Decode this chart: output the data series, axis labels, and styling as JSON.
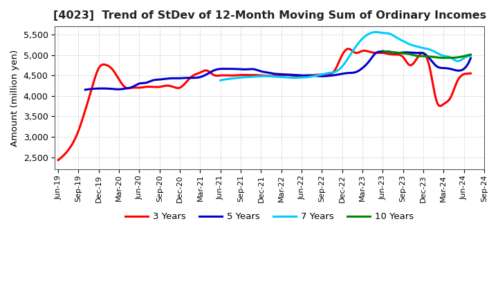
{
  "title": "[4023]  Trend of StDev of 12-Month Moving Sum of Ordinary Incomes",
  "ylabel": "Amount (million yen)",
  "ylim": [
    2200,
    5700
  ],
  "yticks": [
    2500,
    3000,
    3500,
    4000,
    4500,
    5000,
    5500
  ],
  "background_color": "#ffffff",
  "grid_color": "#b0b0b0",
  "series": {
    "3 Years": {
      "color": "#ff0000",
      "x": [
        0,
        1,
        2,
        3,
        4,
        5,
        6,
        7,
        8,
        9,
        10,
        11,
        12,
        13,
        14,
        15,
        16,
        17,
        18,
        19,
        20,
        21,
        22,
        23,
        24,
        25,
        26,
        27,
        28,
        29,
        30,
        31,
        32,
        33,
        34,
        35,
        36,
        37,
        38,
        39,
        40,
        41,
        42,
        43,
        44,
        45,
        46,
        47,
        48,
        49,
        50,
        51,
        52,
        53,
        54,
        55,
        56,
        57,
        58,
        59,
        60,
        61
      ],
      "y": [
        2430,
        2580,
        2800,
        3150,
        3650,
        4200,
        4680,
        4760,
        4650,
        4400,
        4200,
        4200,
        4200,
        4220,
        4220,
        4220,
        4250,
        4220,
        4200,
        4350,
        4500,
        4570,
        4620,
        4510,
        4500,
        4500,
        4500,
        4510,
        4510,
        4510,
        4500,
        4490,
        4490,
        4500,
        4510,
        4490,
        4490,
        4500,
        4510,
        4520,
        4510,
        4650,
        5000,
        5150,
        5050,
        5100,
        5080,
        5050,
        5050,
        5020,
        5010,
        4950,
        4750,
        4900,
        5050,
        4650,
        3850,
        3800,
        3950,
        4350,
        4530,
        4550
      ]
    },
    "5 Years": {
      "color": "#0000cc",
      "x": [
        4,
        5,
        6,
        7,
        8,
        9,
        10,
        11,
        12,
        13,
        14,
        15,
        16,
        17,
        18,
        19,
        20,
        21,
        22,
        23,
        24,
        25,
        26,
        27,
        28,
        29,
        30,
        31,
        32,
        33,
        34,
        35,
        36,
        37,
        38,
        39,
        40,
        41,
        42,
        43,
        44,
        45,
        46,
        47,
        48,
        49,
        50,
        51,
        52,
        53,
        54,
        55,
        56,
        57,
        58,
        59,
        60,
        61
      ],
      "y": [
        4150,
        4170,
        4180,
        4180,
        4170,
        4160,
        4180,
        4220,
        4300,
        4320,
        4380,
        4400,
        4420,
        4430,
        4430,
        4440,
        4440,
        4460,
        4530,
        4620,
        4660,
        4660,
        4660,
        4650,
        4650,
        4650,
        4600,
        4570,
        4540,
        4530,
        4520,
        4510,
        4500,
        4500,
        4490,
        4480,
        4490,
        4510,
        4540,
        4560,
        4580,
        4680,
        4850,
        5050,
        5080,
        5080,
        5050,
        5060,
        5060,
        5050,
        5040,
        4900,
        4720,
        4680,
        4660,
        4620,
        4660,
        4920
      ]
    },
    "7 Years": {
      "color": "#00ccff",
      "x": [
        24,
        25,
        26,
        27,
        28,
        29,
        30,
        31,
        32,
        33,
        34,
        35,
        36,
        37,
        38,
        39,
        40,
        41,
        42,
        43,
        44,
        45,
        46,
        47,
        48,
        49,
        50,
        51,
        52,
        53,
        54,
        55,
        56,
        57,
        58,
        59,
        60,
        61
      ],
      "y": [
        4380,
        4410,
        4430,
        4450,
        4460,
        4470,
        4480,
        4480,
        4470,
        4460,
        4450,
        4440,
        4450,
        4460,
        4490,
        4520,
        4560,
        4590,
        4720,
        4950,
        5200,
        5400,
        5520,
        5560,
        5540,
        5520,
        5430,
        5340,
        5260,
        5210,
        5170,
        5130,
        5050,
        4980,
        4940,
        4850,
        4920,
        4970
      ]
    },
    "10 Years": {
      "color": "#008800",
      "x": [
        48,
        49,
        50,
        51,
        52,
        53,
        54,
        55,
        56,
        57,
        58,
        59,
        60,
        61
      ],
      "y": [
        5100,
        5070,
        5060,
        5040,
        5020,
        4980,
        4970,
        4960,
        4940,
        4930,
        4930,
        4940,
        4970,
        5010
      ]
    }
  },
  "xtick_labels": [
    "Jun-19",
    "Sep-19",
    "Dec-19",
    "Mar-20",
    "Jun-20",
    "Sep-20",
    "Dec-20",
    "Mar-21",
    "Jun-21",
    "Sep-21",
    "Dec-21",
    "Mar-22",
    "Jun-22",
    "Sep-22",
    "Dec-22",
    "Mar-23",
    "Jun-23",
    "Sep-23",
    "Dec-23",
    "Mar-24",
    "Jun-24",
    "Sep-24"
  ],
  "xtick_positions": [
    0,
    3,
    6,
    9,
    12,
    15,
    18,
    21,
    24,
    27,
    30,
    33,
    36,
    39,
    42,
    45,
    48,
    51,
    54,
    57,
    60,
    63
  ],
  "legend_order": [
    "3 Years",
    "5 Years",
    "7 Years",
    "10 Years"
  ]
}
